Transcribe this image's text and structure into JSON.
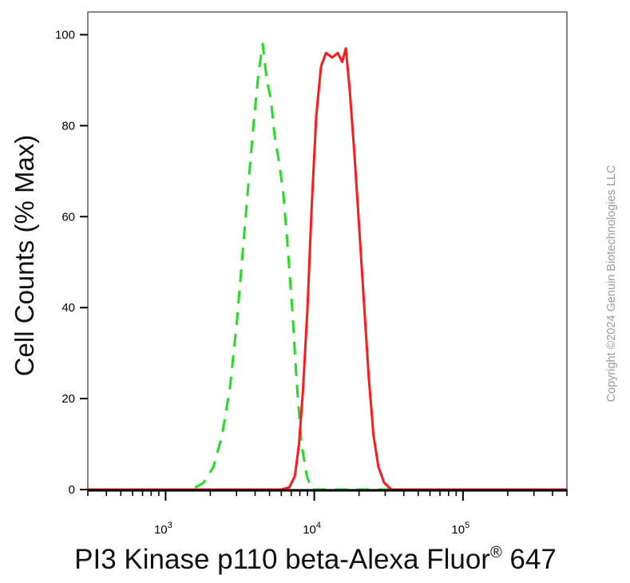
{
  "chart_data": {
    "type": "line",
    "xlabel": "PI3 Kinase p110 beta-Alexa Fluor",
    "xlabel_superscript": "®",
    "xlabel_suffix": " 647",
    "ylabel": "Cell Counts (% Max)",
    "x_scale": "log",
    "xlim": [
      300,
      500000
    ],
    "ylim": [
      0,
      105
    ],
    "y_ticks": [
      0,
      20,
      40,
      60,
      80,
      100
    ],
    "x_tick_labels": [
      {
        "value": 1000,
        "base": "10",
        "exp": "3"
      },
      {
        "value": 10000,
        "base": "10",
        "exp": "4"
      },
      {
        "value": 100000,
        "base": "10",
        "exp": "5"
      }
    ],
    "grid": false,
    "series": [
      {
        "color": "#22dd22",
        "style": "dashed",
        "points": [
          [
            300,
            0
          ],
          [
            1500,
            0
          ],
          [
            1800,
            1.5
          ],
          [
            2100,
            5
          ],
          [
            2400,
            12
          ],
          [
            2700,
            22
          ],
          [
            3000,
            36
          ],
          [
            3300,
            52
          ],
          [
            3600,
            67
          ],
          [
            3900,
            80
          ],
          [
            4200,
            91
          ],
          [
            4500,
            98
          ],
          [
            4800,
            90
          ],
          [
            5100,
            86
          ],
          [
            5400,
            78
          ],
          [
            5800,
            72
          ],
          [
            6200,
            65
          ],
          [
            6600,
            54
          ],
          [
            7100,
            40
          ],
          [
            7600,
            24
          ],
          [
            8200,
            10
          ],
          [
            8900,
            3
          ],
          [
            9600,
            0
          ],
          [
            500000,
            0
          ]
        ]
      },
      {
        "color": "#ff1a1a",
        "style": "solid",
        "points": [
          [
            300,
            0
          ],
          [
            6000,
            0
          ],
          [
            6800,
            0.5
          ],
          [
            7400,
            3
          ],
          [
            7900,
            10
          ],
          [
            8400,
            22
          ],
          [
            9000,
            40
          ],
          [
            9600,
            62
          ],
          [
            10300,
            82
          ],
          [
            11100,
            93
          ],
          [
            12000,
            96
          ],
          [
            13200,
            95
          ],
          [
            14400,
            96
          ],
          [
            15400,
            94
          ],
          [
            16300,
            97
          ],
          [
            17300,
            88
          ],
          [
            18600,
            74
          ],
          [
            20000,
            58
          ],
          [
            21500,
            42
          ],
          [
            23200,
            25
          ],
          [
            25000,
            12
          ],
          [
            27000,
            5
          ],
          [
            29500,
            1.5
          ],
          [
            33000,
            0
          ],
          [
            500000,
            0
          ]
        ]
      }
    ]
  },
  "watermark": "Copyright ©2024 Genuin Biotechnologies LLC"
}
